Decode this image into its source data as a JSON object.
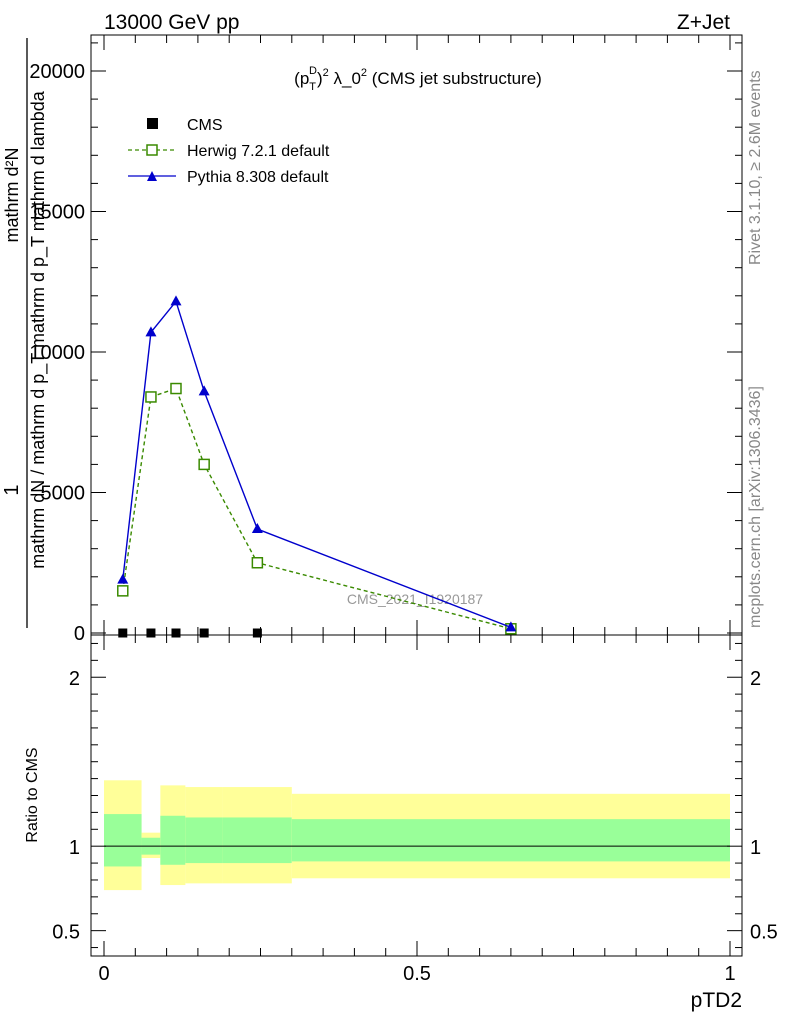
{
  "header": {
    "energy_label": "13000 GeV pp",
    "process_label": "Z+Jet"
  },
  "side_labels": {
    "rivet": "Rivet 3.1.10, ≥ 2.6M events",
    "mcplots": "mcplots.cern.ch [arXiv:1306.3436]"
  },
  "colors": {
    "cms": "#000000",
    "herwig": "#3a8a00",
    "pythia": "#0000cc",
    "band_outer": "#ffff99",
    "band_inner": "#99ff99"
  },
  "chart_data": [
    {
      "type": "line",
      "title": "(p_T^D)^2 λ_0^2 (CMS jet substructure)",
      "watermark": "CMS_2021_I1920187",
      "ylabel_lines": [
        "1",
        "mathrm dN / mathrm d p_T mathrm d p_T mathrm d lambda",
        "mathrm d²N"
      ],
      "xlim": [
        0,
        1
      ],
      "ylim": [
        0,
        25000
      ],
      "y_ticks": [
        0,
        5000,
        10000,
        15000,
        20000
      ],
      "y_tick_labels": [
        "0",
        "5000",
        "10000",
        "15000",
        "20000"
      ],
      "legend_position": "top-left",
      "x": [
        0.03,
        0.075,
        0.115,
        0.16,
        0.245,
        0.65
      ],
      "series": [
        {
          "name": "CMS",
          "marker": "square",
          "values": [
            0,
            0,
            0,
            0,
            0
          ],
          "x": [
            0.03,
            0.075,
            0.115,
            0.16,
            0.245
          ]
        },
        {
          "name": "Herwig 7.2.1 default",
          "marker": "open-square",
          "style": "dashed",
          "values": [
            1500,
            8400,
            8700,
            6000,
            2500,
            150
          ]
        },
        {
          "name": "Pythia 8.308 default",
          "marker": "triangle",
          "style": "solid",
          "values": [
            1900,
            10700,
            11800,
            8600,
            3700,
            200
          ]
        }
      ]
    },
    {
      "type": "area",
      "ylabel": "Ratio to CMS",
      "xlabel": "pTD2",
      "xlim": [
        0,
        1
      ],
      "ylim": [
        0.35,
        2.25
      ],
      "x_ticks": [
        0,
        0.5,
        1
      ],
      "x_tick_labels": [
        "0",
        "0.5",
        "1"
      ],
      "y_ticks": [
        0.5,
        1,
        2
      ],
      "y_tick_labels": [
        "0.5",
        "1",
        "2"
      ],
      "reference_line": 1,
      "bins": [
        {
          "x0": 0.0,
          "x1": 0.06,
          "outer": [
            0.74,
            1.39
          ],
          "inner": [
            0.88,
            1.19
          ]
        },
        {
          "x0": 0.06,
          "x1": 0.09,
          "outer": [
            0.93,
            1.08
          ],
          "inner": [
            0.95,
            1.05
          ]
        },
        {
          "x0": 0.09,
          "x1": 0.13,
          "outer": [
            0.77,
            1.36
          ],
          "inner": [
            0.89,
            1.18
          ]
        },
        {
          "x0": 0.13,
          "x1": 0.19,
          "outer": [
            0.78,
            1.35
          ],
          "inner": [
            0.9,
            1.17
          ]
        },
        {
          "x0": 0.19,
          "x1": 0.3,
          "outer": [
            0.78,
            1.35
          ],
          "inner": [
            0.9,
            1.17
          ]
        },
        {
          "x0": 0.3,
          "x1": 1.0,
          "outer": [
            0.81,
            1.31
          ],
          "inner": [
            0.91,
            1.16
          ]
        }
      ]
    }
  ]
}
